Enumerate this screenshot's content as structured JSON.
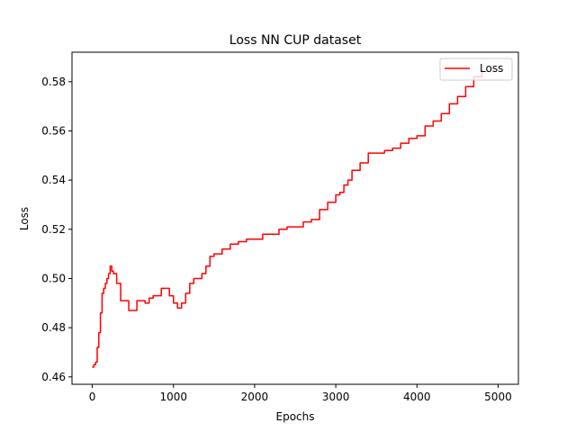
{
  "chart_data": {
    "type": "line",
    "title": "Loss NN CUP dataset",
    "xlabel": "Epochs",
    "ylabel": "Loss",
    "xlim": [
      -250,
      5250
    ],
    "ylim": [
      0.457,
      0.592
    ],
    "xticks": [
      0,
      1000,
      2000,
      3000,
      4000,
      5000
    ],
    "yticks": [
      0.46,
      0.48,
      0.5,
      0.52,
      0.54,
      0.56,
      0.58
    ],
    "xtick_labels": [
      "0",
      "1000",
      "2000",
      "3000",
      "4000",
      "5000"
    ],
    "ytick_labels": [
      "0.46",
      "0.48",
      "0.50",
      "0.52",
      "0.54",
      "0.56",
      "0.58"
    ],
    "grid": false,
    "legend_position": "top-right",
    "colors": {
      "Loss": "#ff0000"
    },
    "series": [
      {
        "name": "Loss",
        "x": [
          0,
          20,
          40,
          60,
          80,
          100,
          120,
          140,
          160,
          180,
          200,
          220,
          240,
          260,
          300,
          350,
          400,
          450,
          500,
          550,
          600,
          650,
          700,
          750,
          800,
          850,
          900,
          950,
          1000,
          1050,
          1100,
          1150,
          1200,
          1250,
          1300,
          1350,
          1400,
          1450,
          1500,
          1600,
          1700,
          1800,
          1900,
          2000,
          2100,
          2200,
          2300,
          2400,
          2500,
          2600,
          2700,
          2800,
          2900,
          3000,
          3050,
          3100,
          3150,
          3200,
          3300,
          3400,
          3500,
          3600,
          3700,
          3800,
          3900,
          4000,
          4100,
          4200,
          4300,
          4400,
          4500,
          4600,
          4700,
          4800
        ],
        "values": [
          0.464,
          0.465,
          0.466,
          0.472,
          0.478,
          0.486,
          0.494,
          0.496,
          0.498,
          0.5,
          0.502,
          0.505,
          0.503,
          0.502,
          0.498,
          0.491,
          0.491,
          0.487,
          0.487,
          0.491,
          0.491,
          0.49,
          0.492,
          0.493,
          0.493,
          0.496,
          0.496,
          0.493,
          0.49,
          0.488,
          0.49,
          0.494,
          0.498,
          0.5,
          0.5,
          0.502,
          0.505,
          0.509,
          0.51,
          0.512,
          0.514,
          0.515,
          0.516,
          0.516,
          0.518,
          0.518,
          0.52,
          0.521,
          0.521,
          0.523,
          0.524,
          0.528,
          0.531,
          0.534,
          0.535,
          0.538,
          0.54,
          0.544,
          0.547,
          0.551,
          0.551,
          0.552,
          0.553,
          0.555,
          0.557,
          0.558,
          0.562,
          0.564,
          0.567,
          0.571,
          0.574,
          0.578,
          0.582,
          0.585
        ]
      }
    ]
  }
}
